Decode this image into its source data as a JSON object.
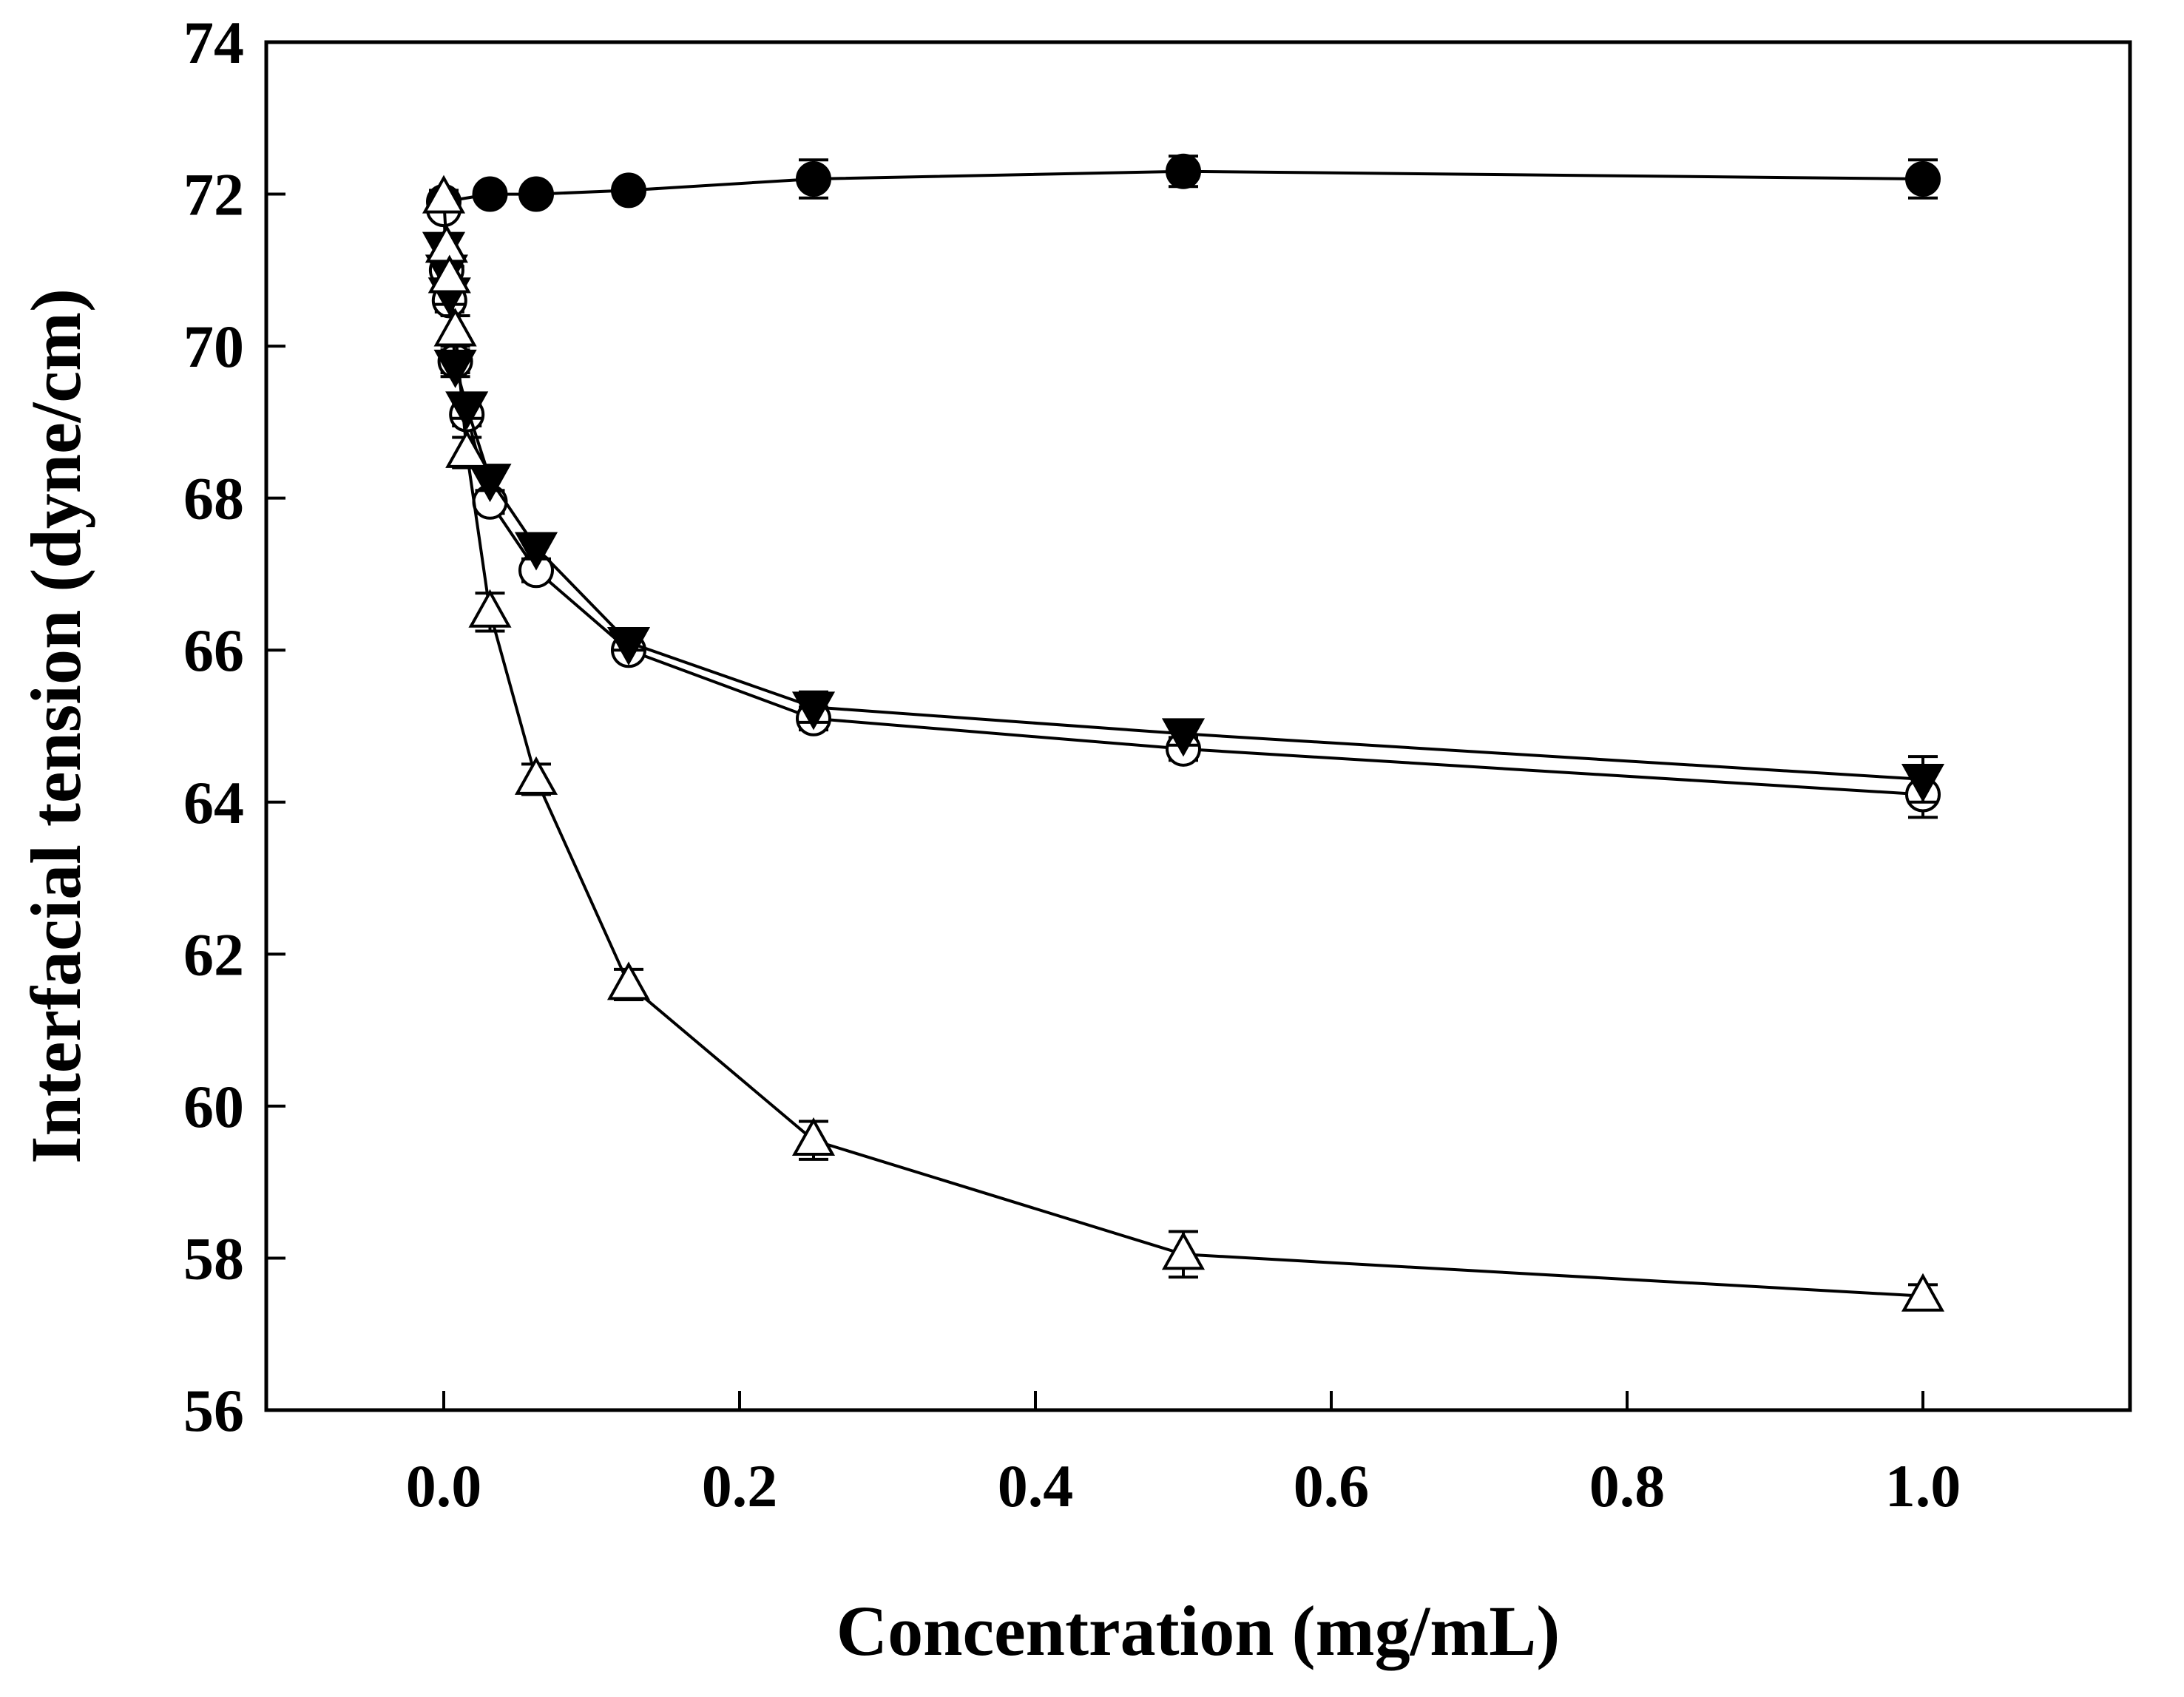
{
  "chart_data": {
    "type": "scatter",
    "title": "",
    "xlabel": "Concentration (mg/mL)",
    "ylabel": "Interfacial tension (dyne/cm)",
    "xlim": [
      -0.12,
      1.14
    ],
    "ylim": [
      56,
      74
    ],
    "xticks": [
      0.0,
      0.2,
      0.4,
      0.6,
      0.8,
      1.0
    ],
    "xtick_labels": [
      "0.0",
      "0.2",
      "0.4",
      "0.6",
      "0.8",
      "1.0"
    ],
    "yticks": [
      56,
      58,
      60,
      62,
      64,
      66,
      68,
      70,
      72,
      74
    ],
    "ytick_labels": [
      "56",
      "58",
      "60",
      "62",
      "64",
      "66",
      "68",
      "70",
      "72",
      "74"
    ],
    "grid": false,
    "legend": "none",
    "series": [
      {
        "name": "filled circle",
        "marker": "circle",
        "filled": true,
        "x": [
          0.0,
          0.03125,
          0.0625,
          0.125,
          0.25,
          0.5,
          1.0
        ],
        "y": [
          71.9,
          72.0,
          72.0,
          72.05,
          72.2,
          72.3,
          72.2
        ],
        "err": [
          0.1,
          0.1,
          0.1,
          0.1,
          0.25,
          0.2,
          0.25
        ]
      },
      {
        "name": "open circle",
        "marker": "circle",
        "filled": false,
        "x": [
          0.0,
          0.00195,
          0.0039,
          0.0078,
          0.0156,
          0.03125,
          0.0625,
          0.125,
          0.25,
          0.5,
          1.0
        ],
        "y": [
          71.8,
          71.0,
          70.6,
          69.8,
          69.1,
          67.95,
          67.05,
          66.0,
          65.1,
          64.7,
          64.1
        ],
        "err": [
          0.1,
          0.15,
          0.15,
          0.15,
          0.15,
          0.15,
          0.15,
          0.1,
          0.15,
          0.15,
          0.3
        ]
      },
      {
        "name": "filled inverted triangle",
        "marker": "triangle-down",
        "filled": true,
        "x": [
          0.0,
          0.00195,
          0.0039,
          0.0078,
          0.0156,
          0.03125,
          0.0625,
          0.125,
          0.25,
          0.5,
          1.0
        ],
        "y": [
          71.3,
          71.0,
          70.7,
          69.75,
          69.2,
          68.25,
          67.35,
          66.1,
          65.25,
          64.9,
          64.3
        ],
        "err": [
          0.15,
          0.15,
          0.15,
          0.15,
          0.15,
          0.15,
          0.15,
          0.1,
          0.2,
          0.15,
          0.3
        ]
      },
      {
        "name": "open triangle",
        "marker": "triangle-up",
        "filled": false,
        "x": [
          0.0,
          0.00195,
          0.0039,
          0.0078,
          0.0156,
          0.03125,
          0.0625,
          0.125,
          0.25,
          0.5,
          1.0
        ],
        "y": [
          71.95,
          71.3,
          70.9,
          70.2,
          68.6,
          66.5,
          64.3,
          61.6,
          59.55,
          58.05,
          57.5
        ],
        "err": [
          0.1,
          0.15,
          0.15,
          0.2,
          0.2,
          0.25,
          0.2,
          0.2,
          0.25,
          0.3,
          0.15
        ]
      }
    ]
  }
}
